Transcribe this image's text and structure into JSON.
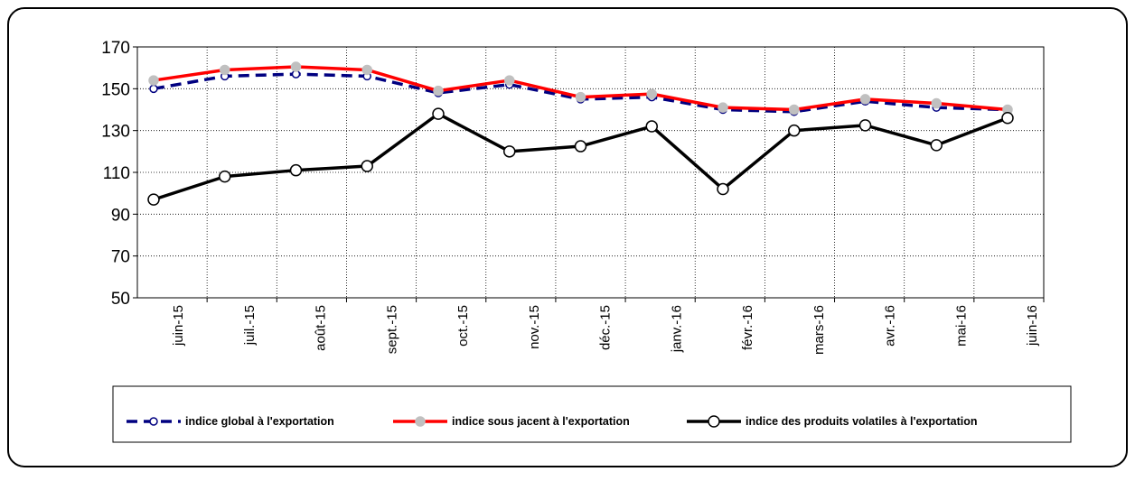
{
  "chart_data": {
    "type": "line",
    "categories": [
      "juin-15",
      "juil.-15",
      "août-15",
      "sept.-15",
      "oct.-15",
      "nov.-15",
      "déc.-15",
      "janv.-16",
      "févr.-16",
      "mars-16",
      "avr.-16",
      "mai-16",
      "juin-16"
    ],
    "series": [
      {
        "name": "indice global à l'exportation",
        "color": "#000080",
        "values": [
          150,
          156,
          157,
          156,
          148,
          152,
          145,
          146,
          140,
          139,
          144,
          141,
          140
        ]
      },
      {
        "name": "indice sous jacent à l'exportation",
        "color": "#ff0000",
        "values": [
          154,
          159,
          160.5,
          159,
          149,
          154,
          146,
          147.5,
          141,
          140,
          145,
          143,
          140
        ]
      },
      {
        "name": "indice des produits volatiles à l'exportation",
        "color": "#000000",
        "values": [
          97,
          108,
          111,
          113,
          138,
          120,
          122.5,
          132,
          102,
          130,
          132.5,
          123,
          136
        ]
      }
    ],
    "ylim": [
      50,
      170
    ],
    "yticks": [
      50,
      70,
      90,
      110,
      130,
      150,
      170
    ],
    "grid": true,
    "legend": "bottom"
  }
}
